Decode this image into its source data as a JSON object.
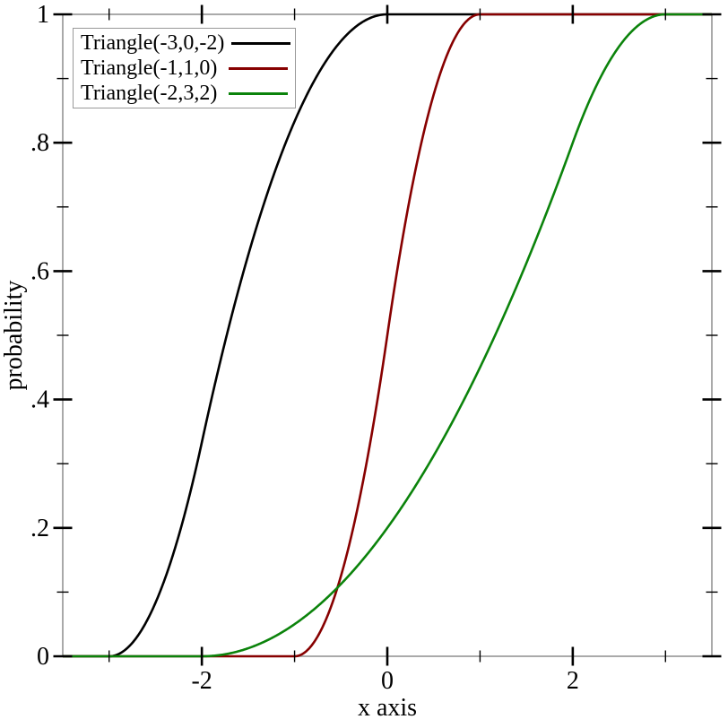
{
  "chart_data": {
    "type": "line",
    "description": "Cumulative distribution functions of three triangular distributions",
    "xlabel": "x axis",
    "ylabel": "probability",
    "xlim": [
      -3.5,
      3.5
    ],
    "ylim": [
      0,
      1
    ],
    "grid": false,
    "background": "#ffffff",
    "frame_color": "#949494",
    "tick_color": "#000000",
    "legend_position": "top-left",
    "x_major_ticks": [
      {
        "value": -2,
        "label": "-2"
      },
      {
        "value": 0,
        "label": "0"
      },
      {
        "value": 2,
        "label": "2"
      }
    ],
    "x_minor_ticks": [
      -3,
      -1,
      1,
      3
    ],
    "y_major_ticks": [
      {
        "value": 0,
        "label": "0"
      },
      {
        "value": 0.2,
        "label": ".2"
      },
      {
        "value": 0.4,
        "label": ".4"
      },
      {
        "value": 0.6,
        "label": ".6"
      },
      {
        "value": 0.8,
        "label": ".8"
      },
      {
        "value": 1,
        "label": "1"
      }
    ],
    "y_minor_ticks": [
      0.1,
      0.3,
      0.5,
      0.7,
      0.9
    ],
    "series": [
      {
        "label": "Triangle(-3,0,-2)",
        "color": "#000000",
        "dist": "triangular-cdf",
        "min": -3,
        "max": 0,
        "mode": -2,
        "key_points": [
          [
            -3.5,
            0
          ],
          [
            -3,
            0
          ],
          [
            -2,
            0.3333
          ],
          [
            -1,
            0.8333
          ],
          [
            0,
            1
          ],
          [
            3.5,
            1
          ]
        ]
      },
      {
        "label": "Triangle(-1,1,0)",
        "color": "#870000",
        "dist": "triangular-cdf",
        "min": -1,
        "max": 1,
        "mode": 0,
        "key_points": [
          [
            -3.5,
            0
          ],
          [
            -1,
            0
          ],
          [
            -0.5,
            0.125
          ],
          [
            0,
            0.5
          ],
          [
            0.5,
            0.875
          ],
          [
            1,
            1
          ],
          [
            3.5,
            1
          ]
        ]
      },
      {
        "label": "Triangle(-2,3,2)",
        "color": "#0b830b",
        "dist": "triangular-cdf",
        "min": -2,
        "max": 3,
        "mode": 2,
        "key_points": [
          [
            -3.5,
            0
          ],
          [
            -2,
            0
          ],
          [
            0,
            0.2
          ],
          [
            2,
            0.8
          ],
          [
            3,
            1
          ],
          [
            3.5,
            1
          ]
        ]
      }
    ]
  }
}
